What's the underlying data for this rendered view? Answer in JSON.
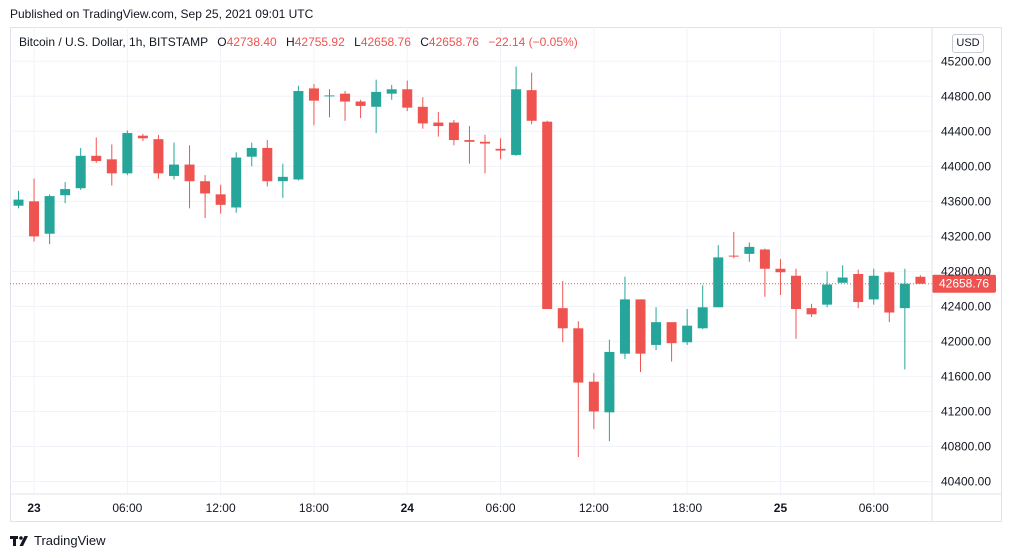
{
  "published": "Published on TradingView.com, Sep 25, 2021 09:01 UTC",
  "legend": {
    "symbol": "Bitcoin / U.S. Dollar, 1h, BITSTAMP",
    "open_label": "O",
    "open": "42738.40",
    "high_label": "H",
    "high": "42755.92",
    "low_label": "L",
    "low": "42658.76",
    "close_label": "C",
    "close": "42658.76",
    "change": "−22.14 (−0.05%)"
  },
  "currency": "USD",
  "footer": {
    "brand": "TradingView",
    "logo_icon": "tradingview-logo-icon"
  },
  "colors": {
    "up": "#26a69a",
    "down": "#ef5350",
    "grid": "#f0f3fa",
    "price_line": "#ef5350"
  },
  "chart_data": {
    "type": "candlestick",
    "ylim": [
      40280,
      45500
    ],
    "grid": true,
    "last_price": 42658.76,
    "last_price_label": "42658.76",
    "y_ticks": [
      {
        "value": 45200,
        "label": "45200.00"
      },
      {
        "value": 44800,
        "label": "44800.00"
      },
      {
        "value": 44400,
        "label": "44400.00"
      },
      {
        "value": 44000,
        "label": "44000.00"
      },
      {
        "value": 43600,
        "label": "43600.00"
      },
      {
        "value": 43200,
        "label": "43200.00"
      },
      {
        "value": 42800,
        "label": "42800.00"
      },
      {
        "value": 42400,
        "label": "42400.00"
      },
      {
        "value": 42000,
        "label": "42000.00"
      },
      {
        "value": 41600,
        "label": "41600.00"
      },
      {
        "value": 41200,
        "label": "41200.00"
      },
      {
        "value": 40800,
        "label": "40800.00"
      },
      {
        "value": 40400,
        "label": "40400.00"
      }
    ],
    "x_ticks": [
      {
        "index": 1,
        "label": "23",
        "bold": true
      },
      {
        "index": 7,
        "label": "06:00",
        "bold": false
      },
      {
        "index": 13,
        "label": "12:00",
        "bold": false
      },
      {
        "index": 19,
        "label": "18:00",
        "bold": false
      },
      {
        "index": 25,
        "label": "24",
        "bold": true
      },
      {
        "index": 31,
        "label": "06:00",
        "bold": false
      },
      {
        "index": 37,
        "label": "12:00",
        "bold": false
      },
      {
        "index": 43,
        "label": "18:00",
        "bold": false
      },
      {
        "index": 49,
        "label": "25",
        "bold": true
      },
      {
        "index": 55,
        "label": "06:00",
        "bold": false
      }
    ],
    "candles": [
      {
        "o": 43550,
        "h": 43720,
        "l": 43520,
        "c": 43620
      },
      {
        "o": 43600,
        "h": 43860,
        "l": 43140,
        "c": 43200
      },
      {
        "o": 43230,
        "h": 43680,
        "l": 43110,
        "c": 43660
      },
      {
        "o": 43670,
        "h": 43820,
        "l": 43580,
        "c": 43740
      },
      {
        "o": 43750,
        "h": 44210,
        "l": 43730,
        "c": 44120
      },
      {
        "o": 44120,
        "h": 44330,
        "l": 44040,
        "c": 44060
      },
      {
        "o": 44080,
        "h": 44250,
        "l": 43780,
        "c": 43920
      },
      {
        "o": 43920,
        "h": 44410,
        "l": 43900,
        "c": 44380
      },
      {
        "o": 44350,
        "h": 44370,
        "l": 44290,
        "c": 44320
      },
      {
        "o": 44310,
        "h": 44360,
        "l": 43860,
        "c": 43920
      },
      {
        "o": 43890,
        "h": 44270,
        "l": 43850,
        "c": 44020
      },
      {
        "o": 44020,
        "h": 44240,
        "l": 43520,
        "c": 43830
      },
      {
        "o": 43830,
        "h": 43900,
        "l": 43410,
        "c": 43690
      },
      {
        "o": 43680,
        "h": 43790,
        "l": 43460,
        "c": 43560
      },
      {
        "o": 43530,
        "h": 44160,
        "l": 43470,
        "c": 44100
      },
      {
        "o": 44110,
        "h": 44270,
        "l": 44000,
        "c": 44210
      },
      {
        "o": 44210,
        "h": 44300,
        "l": 43770,
        "c": 43830
      },
      {
        "o": 43830,
        "h": 44030,
        "l": 43640,
        "c": 43880
      },
      {
        "o": 43850,
        "h": 44920,
        "l": 43840,
        "c": 44860
      },
      {
        "o": 44890,
        "h": 44940,
        "l": 44470,
        "c": 44750
      },
      {
        "o": 44800,
        "h": 44880,
        "l": 44560,
        "c": 44810
      },
      {
        "o": 44830,
        "h": 44860,
        "l": 44520,
        "c": 44740
      },
      {
        "o": 44740,
        "h": 44760,
        "l": 44550,
        "c": 44690
      },
      {
        "o": 44680,
        "h": 44990,
        "l": 44380,
        "c": 44850
      },
      {
        "o": 44830,
        "h": 44930,
        "l": 44760,
        "c": 44880
      },
      {
        "o": 44880,
        "h": 44980,
        "l": 44630,
        "c": 44670
      },
      {
        "o": 44680,
        "h": 44790,
        "l": 44430,
        "c": 44490
      },
      {
        "o": 44500,
        "h": 44620,
        "l": 44340,
        "c": 44460
      },
      {
        "o": 44500,
        "h": 44530,
        "l": 44240,
        "c": 44300
      },
      {
        "o": 44300,
        "h": 44460,
        "l": 44030,
        "c": 44280
      },
      {
        "o": 44280,
        "h": 44360,
        "l": 43920,
        "c": 44260
      },
      {
        "o": 44200,
        "h": 44320,
        "l": 44080,
        "c": 44180
      },
      {
        "o": 44130,
        "h": 45140,
        "l": 44120,
        "c": 44880
      },
      {
        "o": 44870,
        "h": 45070,
        "l": 44480,
        "c": 44520
      },
      {
        "o": 44510,
        "h": 44520,
        "l": 42370,
        "c": 42370
      },
      {
        "o": 42380,
        "h": 42690,
        "l": 41990,
        "c": 42150
      },
      {
        "o": 42150,
        "h": 42230,
        "l": 40680,
        "c": 41530
      },
      {
        "o": 41540,
        "h": 41640,
        "l": 41000,
        "c": 41200
      },
      {
        "o": 41190,
        "h": 42020,
        "l": 40860,
        "c": 41880
      },
      {
        "o": 41860,
        "h": 42740,
        "l": 41800,
        "c": 42480
      },
      {
        "o": 42480,
        "h": 42480,
        "l": 41650,
        "c": 41860
      },
      {
        "o": 41960,
        "h": 42390,
        "l": 41900,
        "c": 42220
      },
      {
        "o": 42220,
        "h": 42210,
        "l": 41770,
        "c": 41980
      },
      {
        "o": 41990,
        "h": 42370,
        "l": 41960,
        "c": 42180
      },
      {
        "o": 42150,
        "h": 42640,
        "l": 42140,
        "c": 42390
      },
      {
        "o": 42390,
        "h": 43100,
        "l": 42390,
        "c": 42960
      },
      {
        "o": 42980,
        "h": 43250,
        "l": 42950,
        "c": 42970
      },
      {
        "o": 43000,
        "h": 43130,
        "l": 42910,
        "c": 43080
      },
      {
        "o": 43050,
        "h": 43060,
        "l": 42510,
        "c": 42830
      },
      {
        "o": 42830,
        "h": 42940,
        "l": 42530,
        "c": 42790
      },
      {
        "o": 42750,
        "h": 42830,
        "l": 42030,
        "c": 42370
      },
      {
        "o": 42380,
        "h": 42430,
        "l": 42280,
        "c": 42310
      },
      {
        "o": 42420,
        "h": 42800,
        "l": 42390,
        "c": 42650
      },
      {
        "o": 42670,
        "h": 42870,
        "l": 42670,
        "c": 42730
      },
      {
        "o": 42770,
        "h": 42820,
        "l": 42380,
        "c": 42450
      },
      {
        "o": 42480,
        "h": 42830,
        "l": 42420,
        "c": 42750
      },
      {
        "o": 42790,
        "h": 42800,
        "l": 42220,
        "c": 42330
      },
      {
        "o": 42380,
        "h": 42830,
        "l": 41680,
        "c": 42660
      },
      {
        "o": 42738.4,
        "h": 42755.92,
        "l": 42658.76,
        "c": 42658.76
      }
    ]
  }
}
